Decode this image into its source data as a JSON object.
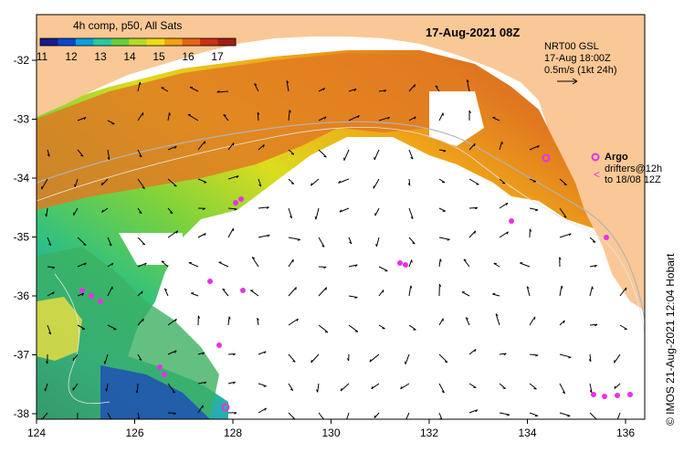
{
  "title": "17-Aug-2021 08Z",
  "colorbar": {
    "label": "4h comp, p50, All Sats",
    "ticks": [
      11,
      12,
      13,
      14,
      15,
      16,
      17
    ],
    "colors": [
      "#1a1a8c",
      "#0a46d2",
      "#0aa0dc",
      "#28c8a0",
      "#64d23c",
      "#b4dc28",
      "#f0dc14",
      "#f5a014",
      "#e66414",
      "#c83214",
      "#a01e14"
    ]
  },
  "info": {
    "line1": "NRT00 GSL",
    "line2": "17-Aug 18:00Z",
    "line3": "0.5m/s (1kt 24h)"
  },
  "legend": {
    "argo": "Argo",
    "drifters1": "drifters@12h",
    "drifters2": "to 18/08 12Z"
  },
  "credit": "© IMOS 21-Aug-2021 12:04 Hobart",
  "axes": {
    "x_ticks": [
      "124",
      "126",
      "128",
      "130",
      "132",
      "134",
      "136"
    ],
    "y_ticks": [
      "-32",
      "-33",
      "-34",
      "-35",
      "-36",
      "-37",
      "-38"
    ]
  },
  "colors": {
    "land": "#fac896",
    "nodata": "#ffffff",
    "argo": "#e632e6"
  }
}
